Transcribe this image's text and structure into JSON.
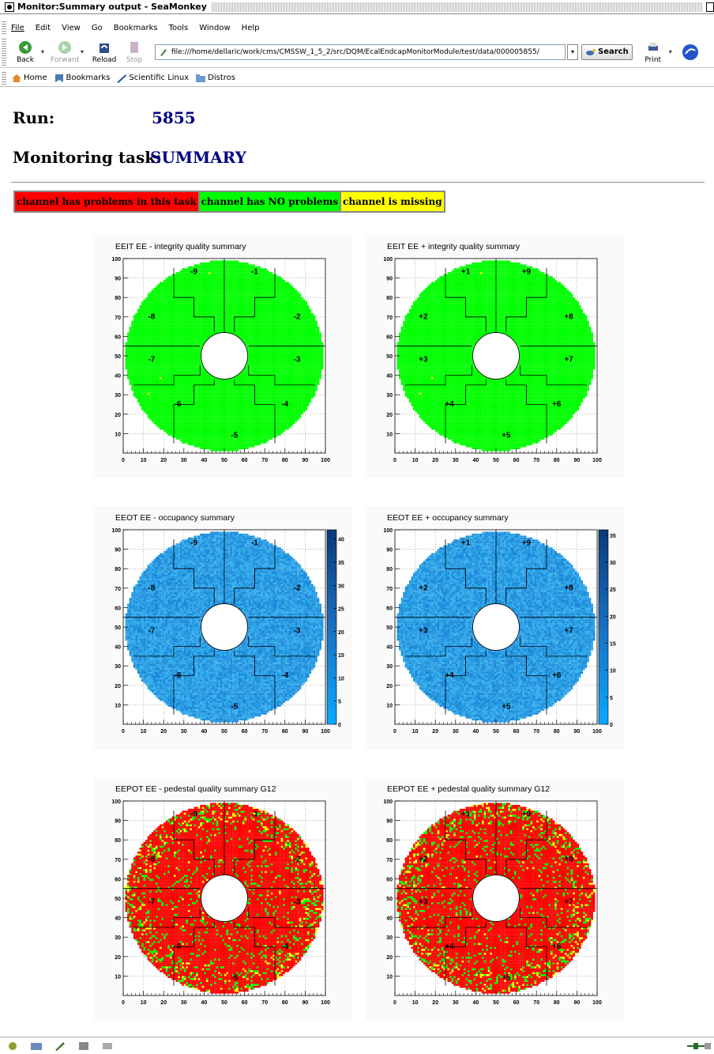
{
  "window": {
    "title": "Monitor:Summary output - SeaMonkey"
  },
  "menu": [
    "File",
    "Edit",
    "View",
    "Go",
    "Bookmarks",
    "Tools",
    "Window",
    "Help"
  ],
  "toolbar": {
    "back": "Back",
    "forward": "Forward",
    "reload": "Reload",
    "stop": "Stop",
    "url": "file:///home/dellaric/work/cms/CMSSW_1_5_2/src/DQM/EcalEndcapMonitorModule/test/data/000005855/",
    "search": "Search",
    "print": "Print"
  },
  "personal_bar": [
    "Home",
    "Bookmarks",
    "Scientific Linux",
    "Distros"
  ],
  "page": {
    "run_label": "Run:",
    "run_value": "5855",
    "task_label": "Monitoring task:",
    "task_value": "SUMMARY",
    "legend": [
      "channel has problems in this task",
      "channel has NO problems",
      "channel is missing"
    ]
  },
  "colors": {
    "problem": "#ff0000",
    "ok": "#00ff00",
    "missing": "#ffff00",
    "occupancy_light": "#2fa8f0",
    "occupancy_dark": "#0a3a78",
    "link": "#000080"
  },
  "chart_data": [
    {
      "type": "heatmap",
      "title": "EEIT EE - integrity quality summary",
      "ylim": [
        0,
        100
      ],
      "xlim": [
        0,
        100
      ],
      "xticks": [
        "0",
        "10",
        "20",
        "30",
        "40",
        "50",
        "60",
        "70",
        "80",
        "90",
        "100"
      ],
      "yticks": [
        "10",
        "20",
        "30",
        "40",
        "50",
        "60",
        "70",
        "80",
        "90",
        "100"
      ],
      "sectors": [
        "-1",
        "-2",
        "-3",
        "-4",
        "-5",
        "-6",
        "-7",
        "-8",
        "-9"
      ],
      "fill": "#00ff00"
    },
    {
      "type": "heatmap",
      "title": "EEIT EE + integrity quality summary",
      "ylim": [
        0,
        100
      ],
      "xlim": [
        0,
        100
      ],
      "xticks": [
        "0",
        "10",
        "20",
        "30",
        "40",
        "50",
        "60",
        "70",
        "80",
        "90",
        "100"
      ],
      "yticks": [
        "10",
        "20",
        "30",
        "40",
        "50",
        "60",
        "70",
        "80",
        "90",
        "100"
      ],
      "sectors": [
        "+9",
        "+8",
        "+7",
        "+6",
        "+5",
        "+4",
        "+3",
        "+2",
        "+1"
      ],
      "fill": "#00ff00"
    },
    {
      "type": "heatmap",
      "title": "EEOT EE - occupancy summary",
      "ylim": [
        0,
        100
      ],
      "xlim": [
        0,
        100
      ],
      "xticks": [
        "0",
        "10",
        "20",
        "30",
        "40",
        "50",
        "60",
        "70",
        "80",
        "90",
        "100"
      ],
      "yticks": [
        "10",
        "20",
        "30",
        "40",
        "50",
        "60",
        "70",
        "80",
        "90",
        "100"
      ],
      "sectors": [
        "-1",
        "-2",
        "-3",
        "-4",
        "-5",
        "-6",
        "-7",
        "-8",
        "-9"
      ],
      "zticks": [
        "0",
        "5",
        "10",
        "15",
        "20",
        "25",
        "30",
        "35",
        "40"
      ],
      "zmax": 42
    },
    {
      "type": "heatmap",
      "title": "EEOT EE + occupancy summary",
      "ylim": [
        0,
        100
      ],
      "xlim": [
        0,
        100
      ],
      "xticks": [
        "0",
        "10",
        "20",
        "30",
        "40",
        "50",
        "60",
        "70",
        "80",
        "90",
        "100"
      ],
      "yticks": [
        "10",
        "20",
        "30",
        "40",
        "50",
        "60",
        "70",
        "80",
        "90",
        "100"
      ],
      "sectors": [
        "+9",
        "+8",
        "+7",
        "+6",
        "+5",
        "+4",
        "+3",
        "+2",
        "+1"
      ],
      "zticks": [
        "0",
        "5",
        "10",
        "15",
        "20",
        "25",
        "30",
        "35"
      ],
      "zmax": 36
    },
    {
      "type": "heatmap",
      "title": "EEPOT EE - pedestal quality summary G12",
      "ylim": [
        0,
        100
      ],
      "xlim": [
        0,
        100
      ],
      "xticks": [
        "0",
        "10",
        "20",
        "30",
        "40",
        "50",
        "60",
        "70",
        "80",
        "90",
        "100"
      ],
      "yticks": [
        "10",
        "20",
        "30",
        "40",
        "50",
        "60",
        "70",
        "80",
        "90",
        "100"
      ],
      "sectors": [
        "-1",
        "-2",
        "-3",
        "-4",
        "-5",
        "-6",
        "-7",
        "-8",
        "-9"
      ],
      "fill": "#ff0000"
    },
    {
      "type": "heatmap",
      "title": "EEPOT EE + pedestal quality summary G12",
      "ylim": [
        0,
        100
      ],
      "xlim": [
        0,
        100
      ],
      "xticks": [
        "0",
        "10",
        "20",
        "30",
        "40",
        "50",
        "60",
        "70",
        "80",
        "90",
        "100"
      ],
      "yticks": [
        "10",
        "20",
        "30",
        "40",
        "50",
        "60",
        "70",
        "80",
        "90",
        "100"
      ],
      "sectors": [
        "+9",
        "+8",
        "+7",
        "+6",
        "+5",
        "+4",
        "+3",
        "+2",
        "+1"
      ],
      "fill": "#ff0000"
    }
  ]
}
